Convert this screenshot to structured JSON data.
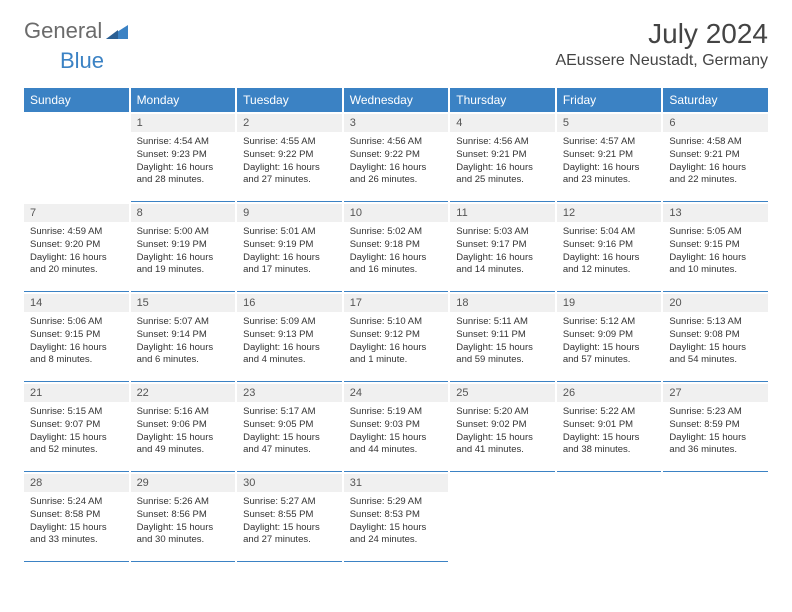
{
  "logo": {
    "part1": "General",
    "part2": "Blue"
  },
  "title": "July 2024",
  "location": "AEussere Neustadt, Germany",
  "dayHeaders": [
    "Sunday",
    "Monday",
    "Tuesday",
    "Wednesday",
    "Thursday",
    "Friday",
    "Saturday"
  ],
  "colors": {
    "accent": "#3b82c4",
    "headerBg": "#3b82c4",
    "dayBg": "#f0f0f0",
    "text": "#333333"
  },
  "startBlank": 1,
  "days": [
    {
      "n": "1",
      "sunrise": "4:54 AM",
      "sunset": "9:23 PM",
      "daylight": "16 hours and 28 minutes."
    },
    {
      "n": "2",
      "sunrise": "4:55 AM",
      "sunset": "9:22 PM",
      "daylight": "16 hours and 27 minutes."
    },
    {
      "n": "3",
      "sunrise": "4:56 AM",
      "sunset": "9:22 PM",
      "daylight": "16 hours and 26 minutes."
    },
    {
      "n": "4",
      "sunrise": "4:56 AM",
      "sunset": "9:21 PM",
      "daylight": "16 hours and 25 minutes."
    },
    {
      "n": "5",
      "sunrise": "4:57 AM",
      "sunset": "9:21 PM",
      "daylight": "16 hours and 23 minutes."
    },
    {
      "n": "6",
      "sunrise": "4:58 AM",
      "sunset": "9:21 PM",
      "daylight": "16 hours and 22 minutes."
    },
    {
      "n": "7",
      "sunrise": "4:59 AM",
      "sunset": "9:20 PM",
      "daylight": "16 hours and 20 minutes."
    },
    {
      "n": "8",
      "sunrise": "5:00 AM",
      "sunset": "9:19 PM",
      "daylight": "16 hours and 19 minutes."
    },
    {
      "n": "9",
      "sunrise": "5:01 AM",
      "sunset": "9:19 PM",
      "daylight": "16 hours and 17 minutes."
    },
    {
      "n": "10",
      "sunrise": "5:02 AM",
      "sunset": "9:18 PM",
      "daylight": "16 hours and 16 minutes."
    },
    {
      "n": "11",
      "sunrise": "5:03 AM",
      "sunset": "9:17 PM",
      "daylight": "16 hours and 14 minutes."
    },
    {
      "n": "12",
      "sunrise": "5:04 AM",
      "sunset": "9:16 PM",
      "daylight": "16 hours and 12 minutes."
    },
    {
      "n": "13",
      "sunrise": "5:05 AM",
      "sunset": "9:15 PM",
      "daylight": "16 hours and 10 minutes."
    },
    {
      "n": "14",
      "sunrise": "5:06 AM",
      "sunset": "9:15 PM",
      "daylight": "16 hours and 8 minutes."
    },
    {
      "n": "15",
      "sunrise": "5:07 AM",
      "sunset": "9:14 PM",
      "daylight": "16 hours and 6 minutes."
    },
    {
      "n": "16",
      "sunrise": "5:09 AM",
      "sunset": "9:13 PM",
      "daylight": "16 hours and 4 minutes."
    },
    {
      "n": "17",
      "sunrise": "5:10 AM",
      "sunset": "9:12 PM",
      "daylight": "16 hours and 1 minute."
    },
    {
      "n": "18",
      "sunrise": "5:11 AM",
      "sunset": "9:11 PM",
      "daylight": "15 hours and 59 minutes."
    },
    {
      "n": "19",
      "sunrise": "5:12 AM",
      "sunset": "9:09 PM",
      "daylight": "15 hours and 57 minutes."
    },
    {
      "n": "20",
      "sunrise": "5:13 AM",
      "sunset": "9:08 PM",
      "daylight": "15 hours and 54 minutes."
    },
    {
      "n": "21",
      "sunrise": "5:15 AM",
      "sunset": "9:07 PM",
      "daylight": "15 hours and 52 minutes."
    },
    {
      "n": "22",
      "sunrise": "5:16 AM",
      "sunset": "9:06 PM",
      "daylight": "15 hours and 49 minutes."
    },
    {
      "n": "23",
      "sunrise": "5:17 AM",
      "sunset": "9:05 PM",
      "daylight": "15 hours and 47 minutes."
    },
    {
      "n": "24",
      "sunrise": "5:19 AM",
      "sunset": "9:03 PM",
      "daylight": "15 hours and 44 minutes."
    },
    {
      "n": "25",
      "sunrise": "5:20 AM",
      "sunset": "9:02 PM",
      "daylight": "15 hours and 41 minutes."
    },
    {
      "n": "26",
      "sunrise": "5:22 AM",
      "sunset": "9:01 PM",
      "daylight": "15 hours and 38 minutes."
    },
    {
      "n": "27",
      "sunrise": "5:23 AM",
      "sunset": "8:59 PM",
      "daylight": "15 hours and 36 minutes."
    },
    {
      "n": "28",
      "sunrise": "5:24 AM",
      "sunset": "8:58 PM",
      "daylight": "15 hours and 33 minutes."
    },
    {
      "n": "29",
      "sunrise": "5:26 AM",
      "sunset": "8:56 PM",
      "daylight": "15 hours and 30 minutes."
    },
    {
      "n": "30",
      "sunrise": "5:27 AM",
      "sunset": "8:55 PM",
      "daylight": "15 hours and 27 minutes."
    },
    {
      "n": "31",
      "sunrise": "5:29 AM",
      "sunset": "8:53 PM",
      "daylight": "15 hours and 24 minutes."
    }
  ],
  "labels": {
    "sunrise": "Sunrise:",
    "sunset": "Sunset:",
    "daylight": "Daylight:"
  }
}
